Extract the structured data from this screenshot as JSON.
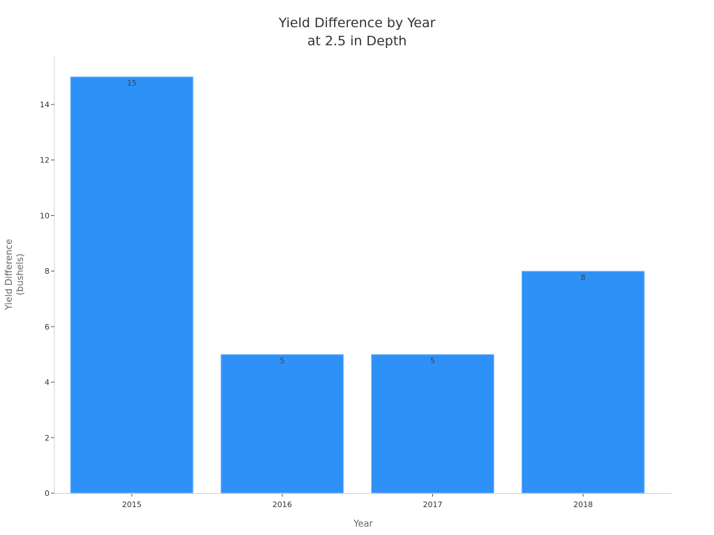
{
  "chart_data": {
    "type": "bar",
    "title": "Yield Difference by Year\nat 2.5 in Depth",
    "title_lines": [
      "Yield Difference by Year",
      "at 2.5 in Depth"
    ],
    "xlabel": "Year",
    "ylabel": "Yield Difference\n(bushels)",
    "ylabel_lines": [
      "Yield Difference",
      "(bushels)"
    ],
    "categories": [
      "2015",
      "2016",
      "2017",
      "2018"
    ],
    "values": [
      15,
      5,
      5,
      8
    ],
    "data_labels": [
      "15",
      "5",
      "5",
      "8"
    ],
    "yticks": [
      0,
      2,
      4,
      6,
      8,
      10,
      12,
      14
    ],
    "ylim": [
      0,
      15.75
    ],
    "grid": false,
    "legend": null,
    "bar_color": "#2e91f8"
  }
}
